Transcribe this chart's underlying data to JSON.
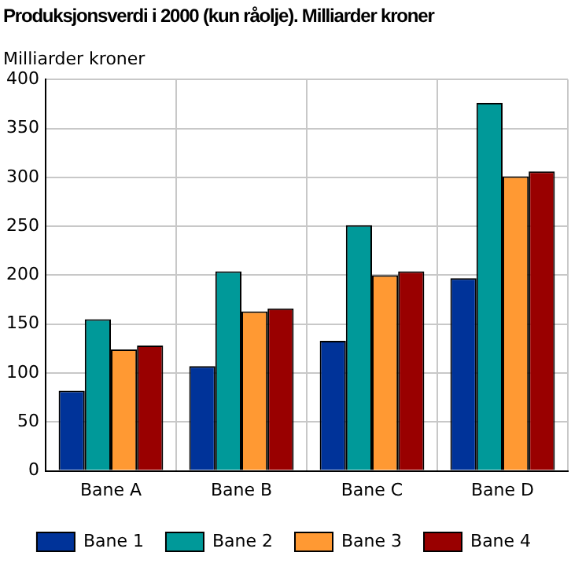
{
  "chart_data": {
    "type": "bar",
    "title": "Produksjonsverdi i 2000 (kun råolje). Milliarder kroner",
    "ylabel": "Milliarder kroner",
    "categories": [
      "Bane A",
      "Bane B",
      "Bane C",
      "Bane D"
    ],
    "series": [
      {
        "name": "Bane 1",
        "color": "#003399",
        "values": [
          82,
          107,
          133,
          197
        ]
      },
      {
        "name": "Bane 2",
        "color": "#009999",
        "values": [
          155,
          204,
          251,
          376
        ]
      },
      {
        "name": "Bane 3",
        "color": "#ff9933",
        "values": [
          124,
          163,
          200,
          301
        ]
      },
      {
        "name": "Bane 4",
        "color": "#990000",
        "values": [
          128,
          166,
          204,
          306
        ]
      }
    ],
    "ylim": [
      0,
      400
    ],
    "yticks": [
      0,
      50,
      100,
      150,
      200,
      250,
      300,
      350,
      400
    ],
    "grid": true,
    "legend": "bottom"
  }
}
